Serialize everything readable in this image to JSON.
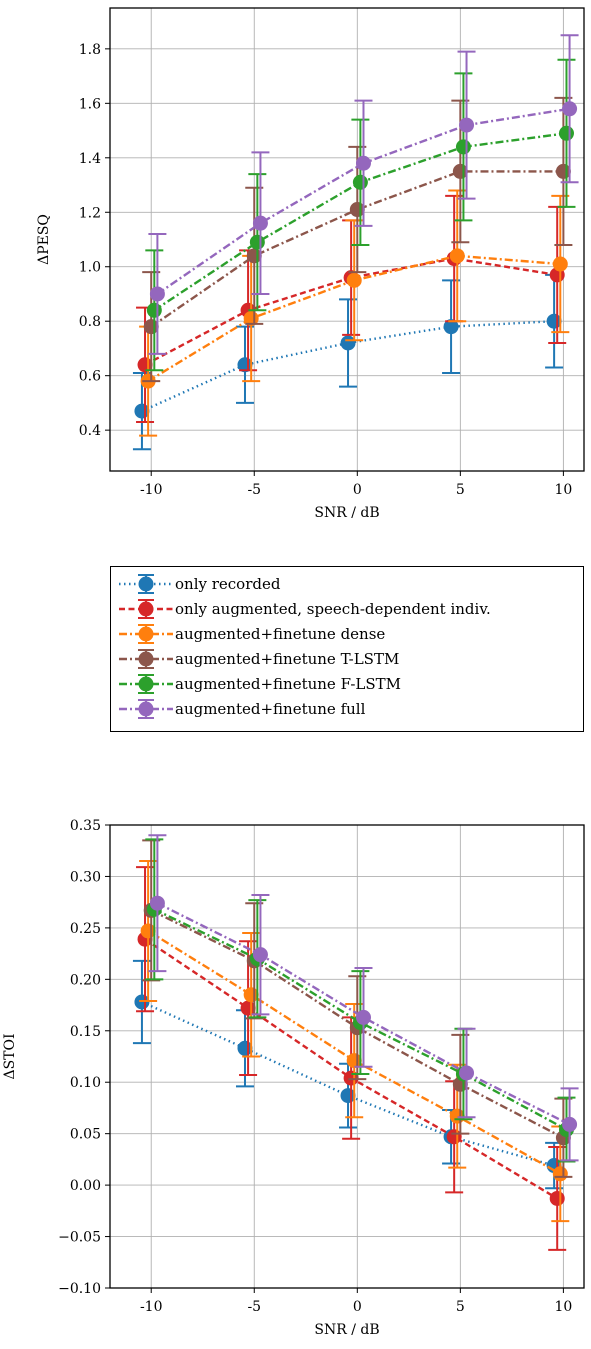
{
  "chart_data": [
    {
      "type": "line",
      "title": "",
      "xlabel": "SNR / dB",
      "ylabel": "ΔPESQ",
      "x": [
        -10,
        -5,
        0,
        5,
        10
      ],
      "x_tick_labels": [
        "-10",
        "-5",
        "0",
        "5",
        "10"
      ],
      "xlim": [
        -12,
        11
      ],
      "ylim": [
        0.25,
        1.95
      ],
      "yticks": [
        0.4,
        0.6,
        0.8,
        1.0,
        1.2,
        1.4,
        1.6,
        1.8
      ],
      "y_tick_labels": [
        "0.4",
        "0.6",
        "0.8",
        "1.0",
        "1.2",
        "1.4",
        "1.6",
        "1.8"
      ],
      "grid": true,
      "error_bars": true,
      "series": [
        {
          "name": "only recorded",
          "x_offset": -0.45,
          "values": [
            0.47,
            0.64,
            0.72,
            0.78,
            0.8
          ],
          "errors": [
            0.14,
            0.14,
            0.16,
            0.17,
            0.17
          ]
        },
        {
          "name": "only augmented, speech-dependent indiv.",
          "x_offset": -0.3,
          "values": [
            0.64,
            0.84,
            0.96,
            1.03,
            0.97
          ],
          "errors": [
            0.21,
            0.22,
            0.21,
            0.23,
            0.25
          ]
        },
        {
          "name": "augmented+finetune dense",
          "x_offset": -0.15,
          "values": [
            0.58,
            0.81,
            0.95,
            1.04,
            1.01
          ],
          "errors": [
            0.2,
            0.23,
            0.22,
            0.24,
            0.25
          ]
        },
        {
          "name": "augmented+finetune T-LSTM",
          "x_offset": 0.0,
          "values": [
            0.78,
            1.04,
            1.21,
            1.35,
            1.35
          ],
          "errors": [
            0.2,
            0.25,
            0.23,
            0.26,
            0.27
          ]
        },
        {
          "name": "augmented+finetune F-LSTM",
          "x_offset": 0.15,
          "values": [
            0.84,
            1.09,
            1.31,
            1.44,
            1.49
          ],
          "errors": [
            0.22,
            0.25,
            0.23,
            0.27,
            0.27
          ]
        },
        {
          "name": "augmented+finetune full",
          "x_offset": 0.3,
          "values": [
            0.9,
            1.16,
            1.38,
            1.52,
            1.58
          ],
          "errors": [
            0.22,
            0.26,
            0.23,
            0.27,
            0.27
          ]
        }
      ]
    },
    {
      "type": "line",
      "title": "",
      "xlabel": "SNR / dB",
      "ylabel": "ΔSTOI",
      "x": [
        -10,
        -5,
        0,
        5,
        10
      ],
      "x_tick_labels": [
        "-10",
        "-5",
        "0",
        "5",
        "10"
      ],
      "xlim": [
        -12,
        11
      ],
      "ylim": [
        -0.1,
        0.35
      ],
      "yticks": [
        -0.1,
        -0.05,
        0.0,
        0.05,
        0.1,
        0.15,
        0.2,
        0.25,
        0.3,
        0.35
      ],
      "y_tick_labels": [
        "−0.10",
        "−0.05",
        "0.00",
        "0.05",
        "0.10",
        "0.15",
        "0.20",
        "0.25",
        "0.30",
        "0.35"
      ],
      "grid": true,
      "error_bars": true,
      "series": [
        {
          "name": "only recorded",
          "x_offset": -0.45,
          "values": [
            0.178,
            0.133,
            0.087,
            0.047,
            0.019
          ],
          "errors": [
            0.04,
            0.037,
            0.031,
            0.026,
            0.022
          ]
        },
        {
          "name": "only augmented, speech-dependent indiv.",
          "x_offset": -0.3,
          "values": [
            0.239,
            0.172,
            0.104,
            0.047,
            -0.013
          ],
          "errors": [
            0.07,
            0.065,
            0.059,
            0.054,
            0.05
          ]
        },
        {
          "name": "augmented+finetune dense",
          "x_offset": -0.15,
          "values": [
            0.247,
            0.185,
            0.121,
            0.067,
            0.011
          ],
          "errors": [
            0.068,
            0.06,
            0.055,
            0.05,
            0.046
          ]
        },
        {
          "name": "augmented+finetune T-LSTM",
          "x_offset": 0.0,
          "values": [
            0.267,
            0.218,
            0.153,
            0.098,
            0.046
          ],
          "errors": [
            0.068,
            0.056,
            0.05,
            0.048,
            0.038
          ]
        },
        {
          "name": "augmented+finetune F-LSTM",
          "x_offset": 0.15,
          "values": [
            0.268,
            0.22,
            0.158,
            0.108,
            0.054
          ],
          "errors": [
            0.068,
            0.057,
            0.05,
            0.044,
            0.031
          ]
        },
        {
          "name": "augmented+finetune full",
          "x_offset": 0.3,
          "values": [
            0.274,
            0.224,
            0.163,
            0.109,
            0.059
          ],
          "errors": [
            0.066,
            0.058,
            0.048,
            0.043,
            0.035
          ]
        }
      ]
    }
  ],
  "legend": {
    "placement": "between-plots",
    "entries": [
      {
        "label": "only recorded",
        "color": "#1f77b4",
        "dash": "dotted"
      },
      {
        "label": "only augmented, speech-dependent indiv.",
        "color": "#d62728",
        "dash": "dashed"
      },
      {
        "label": "augmented+finetune dense",
        "color": "#ff7f0e",
        "dash": "dashdot"
      },
      {
        "label": "augmented+finetune T-LSTM",
        "color": "#8c564b",
        "dash": "dashdot"
      },
      {
        "label": "augmented+finetune F-LSTM",
        "color": "#2ca02c",
        "dash": "dashdot"
      },
      {
        "label": "augmented+finetune full",
        "color": "#9467bd",
        "dash": "dashdot"
      }
    ]
  }
}
